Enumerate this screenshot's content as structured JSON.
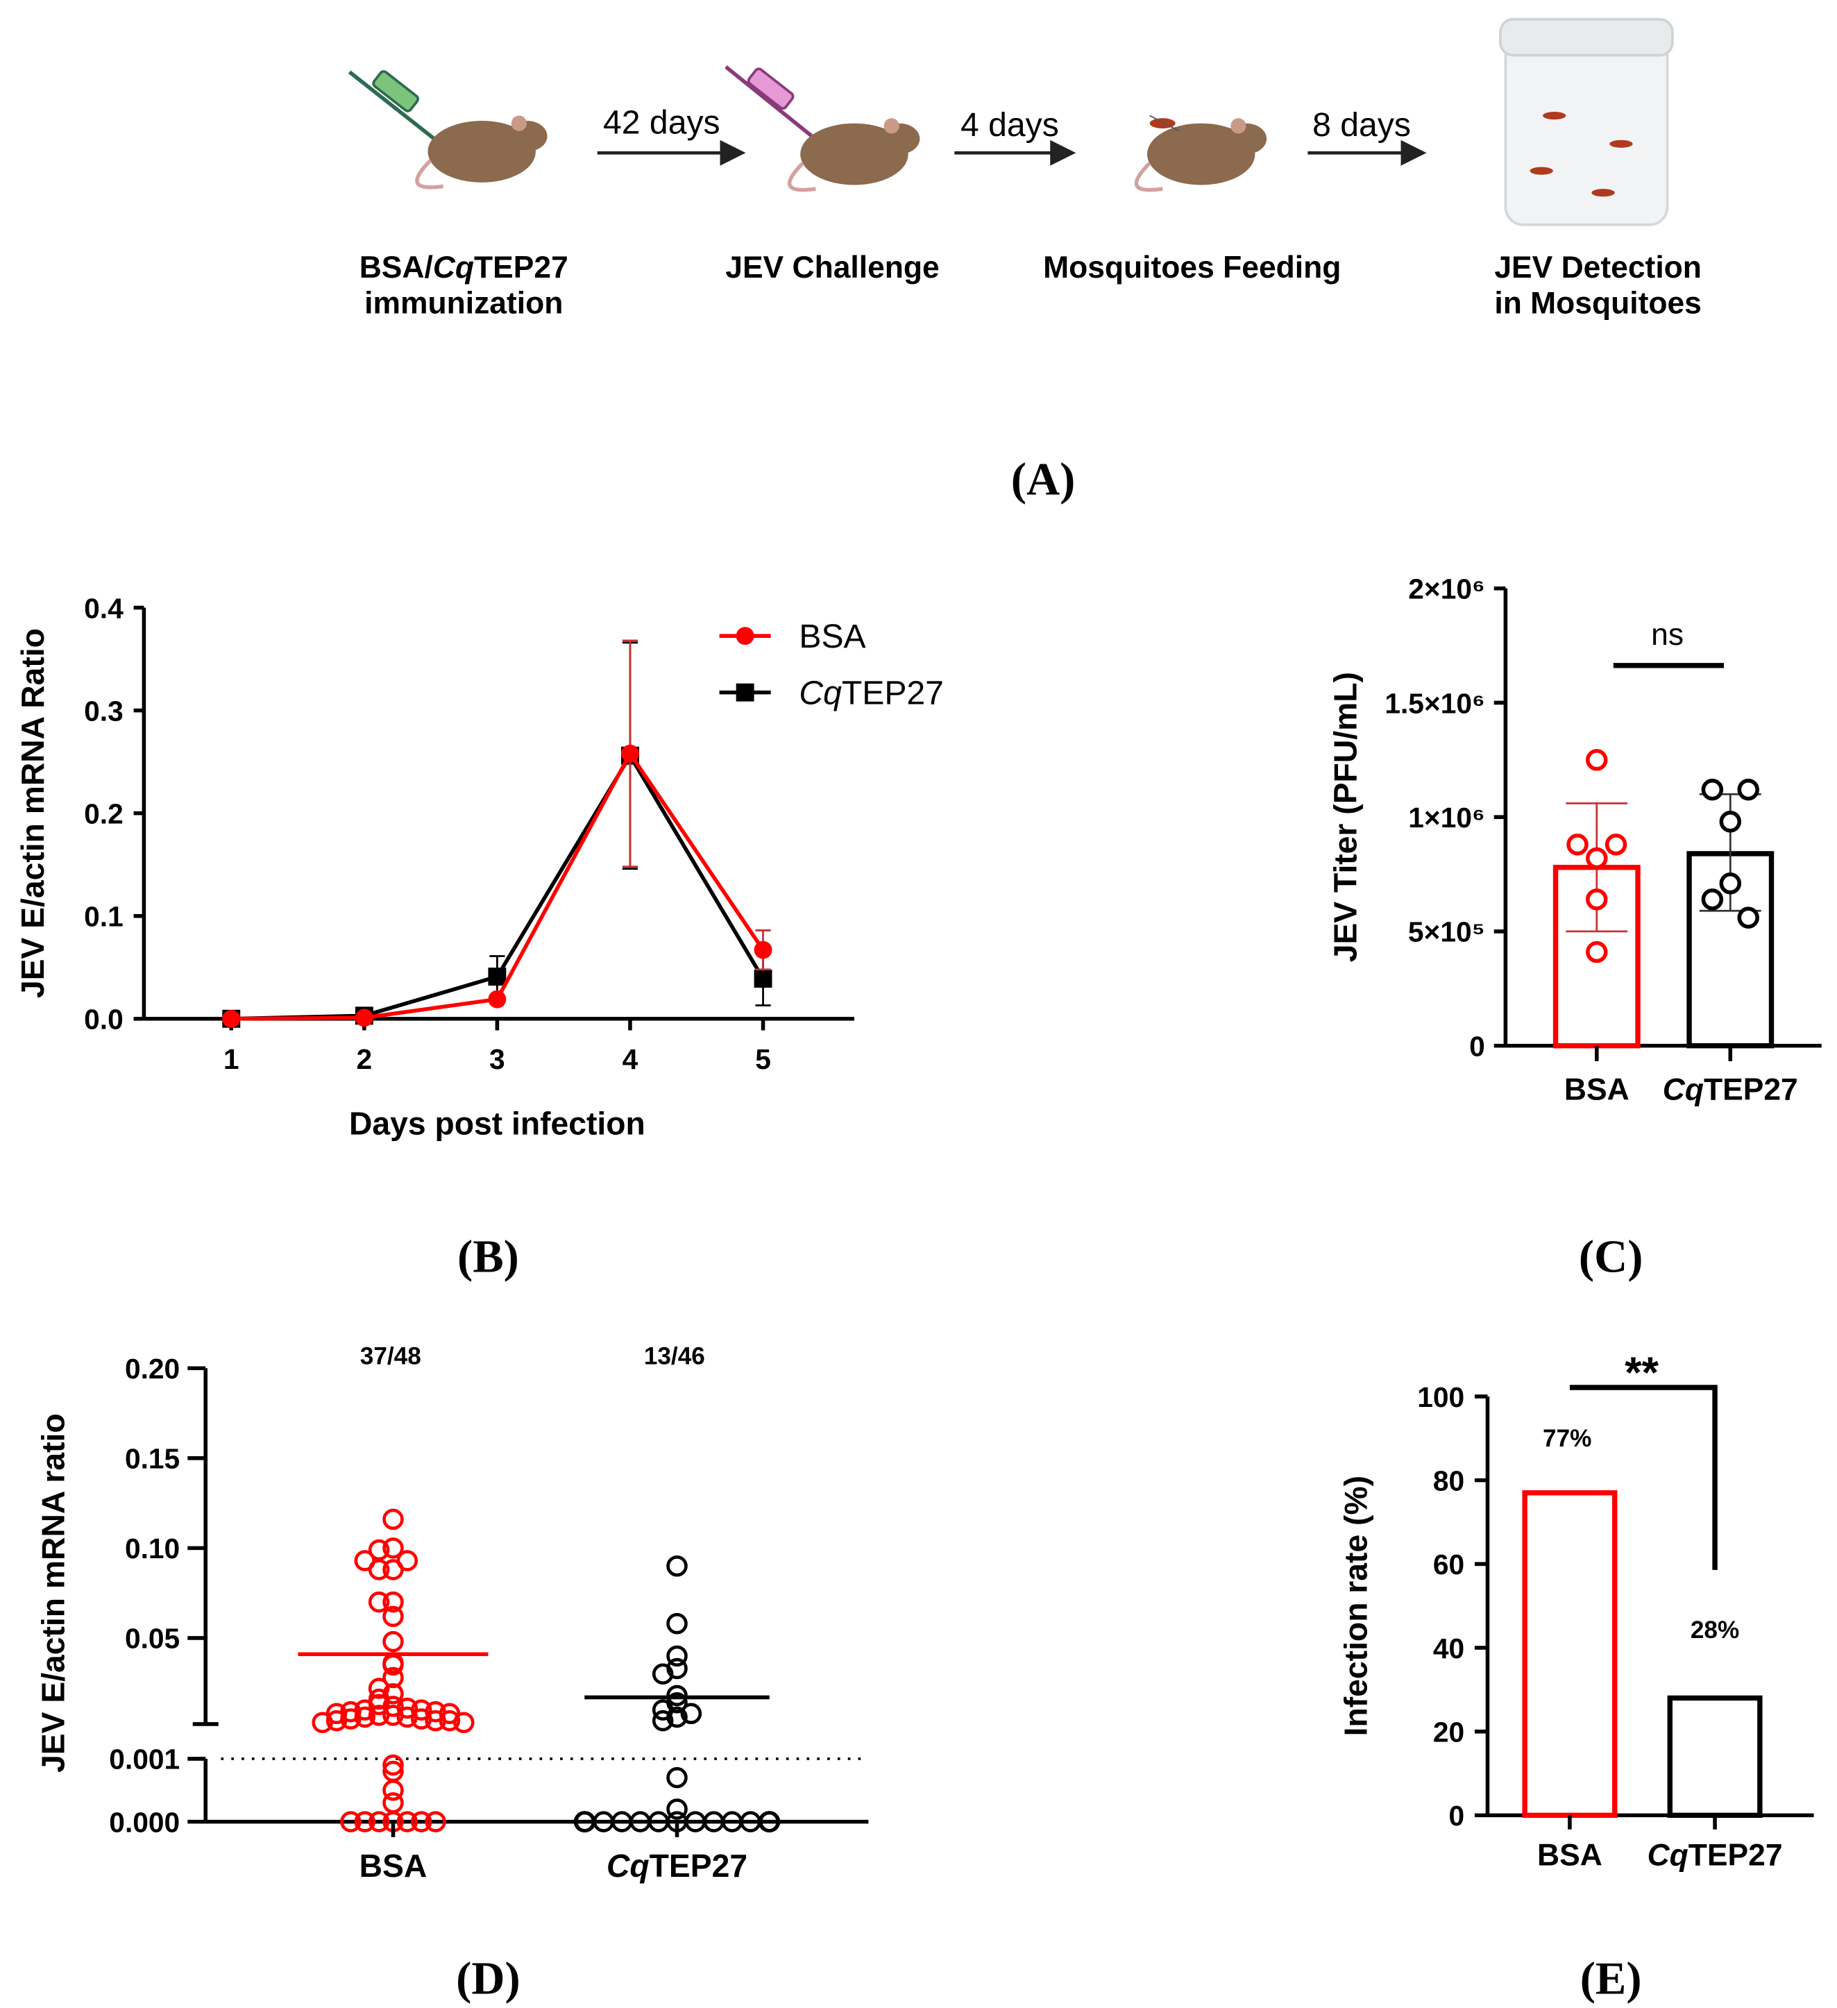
{
  "panel_labels": {
    "a": "(A)",
    "b": "(B)",
    "c": "(C)",
    "d": "(D)",
    "e": "(E)"
  },
  "workflow": {
    "arrows": [
      "42 days",
      "4 days",
      "8 days"
    ],
    "steps": [
      {
        "line1_prefix": "BSA/",
        "line1_italic": "Cq",
        "line1_suffix": "TEP27",
        "line2": "immunization"
      },
      {
        "line1": "JEV Challenge"
      },
      {
        "line1": "Mosquitoes Feeding"
      },
      {
        "line1": "JEV Detection",
        "line2": "in Mosquitoes"
      }
    ]
  },
  "colors": {
    "bsa": "#ff0000",
    "cqtep27": "#000000",
    "bsa_error": "#c83232"
  },
  "chart_data": [
    {
      "id": "B",
      "type": "line",
      "xlabel": "Days post infection",
      "ylabel": "JEV E/actin mRNA Ratio",
      "x": [
        1,
        2,
        3,
        4,
        5
      ],
      "ylim": [
        0,
        0.4
      ],
      "yticks": [
        "0.0",
        "0.1",
        "0.2",
        "0.3",
        "0.4"
      ],
      "xticks": [
        "1",
        "2",
        "3",
        "4",
        "5"
      ],
      "legend_position": "top-right",
      "series": [
        {
          "name": "BSA",
          "italic_prefix": "",
          "suffix": "BSA",
          "marker": "circle",
          "values": [
            0.0,
            0.001,
            0.019,
            0.258,
            0.067
          ],
          "errors": [
            0,
            0,
            0.003,
            0.11,
            0.019
          ]
        },
        {
          "name": "CqTEP27",
          "italic_prefix": "Cq",
          "suffix": "TEP27",
          "marker": "square",
          "values": [
            0.0,
            0.003,
            0.041,
            0.256,
            0.039
          ],
          "errors": [
            0,
            0,
            0.02,
            0.11,
            0.026
          ]
        }
      ]
    },
    {
      "id": "C",
      "type": "bar",
      "ylabel": "JEV Titer (PFU/mL)",
      "ylim": [
        0,
        2000000
      ],
      "yticks": [
        "0",
        "5×10⁵",
        "1×10⁶",
        "1.5×10⁶",
        "2×10⁶"
      ],
      "categories": [
        "BSA",
        "CqTEP27"
      ],
      "values": [
        780000,
        840000
      ],
      "error_ranges": [
        [
          500000,
          1060000
        ],
        [
          590000,
          1100000
        ]
      ],
      "points": [
        [
          1250000,
          880000,
          880000,
          820000,
          640000,
          410000
        ],
        [
          1120000,
          1120000,
          980000,
          710000,
          640000,
          560000
        ]
      ],
      "annotation": "ns"
    },
    {
      "id": "D",
      "type": "scatter",
      "ylabel": "JEV E/actin mRNA ratio",
      "yticks_upper": [
        "0.05",
        "0.10",
        "0.15",
        "0.20"
      ],
      "yticks_lower": [
        "0.000",
        "0.001"
      ],
      "ylim_upper": [
        0,
        0.2
      ],
      "ylim_lower": [
        0,
        0.001
      ],
      "threshold": 0.001,
      "categories": [
        "BSA",
        "CqTEP27"
      ],
      "counts": [
        "37/48",
        "13/46"
      ],
      "means": [
        0.041,
        0.017
      ],
      "points": [
        [
          0.116,
          0.1,
          0.099,
          0.093,
          0.093,
          0.088,
          0.088,
          0.07,
          0.07,
          0.062,
          0.048,
          0.036,
          0.035,
          0.028,
          0.022,
          0.019,
          0.016,
          0.012,
          0.013,
          0.011,
          0.01,
          0.01,
          0.009,
          0.009,
          0.008,
          0.008,
          0.007,
          0.007,
          0.006,
          0.006,
          0.005,
          0.005,
          0.004,
          0.004,
          0.004,
          0.003,
          0.003,
          0.0009,
          0.0008,
          0.0005,
          0.0003,
          0,
          0,
          0,
          0,
          0,
          0,
          0
        ],
        [
          0.09,
          0.058,
          0.04,
          0.033,
          0.03,
          0.018,
          0.014,
          0.01,
          0.008,
          0.006,
          0.004,
          0.0007,
          0.0002,
          0,
          0,
          0,
          0,
          0,
          0,
          0,
          0,
          0,
          0,
          0,
          0,
          0,
          0,
          0,
          0,
          0,
          0,
          0,
          0,
          0,
          0,
          0,
          0,
          0,
          0,
          0,
          0,
          0,
          0,
          0,
          0,
          0
        ]
      ]
    },
    {
      "id": "E",
      "type": "bar",
      "ylabel": "Infection rate (%)",
      "ylim": [
        0,
        100
      ],
      "yticks": [
        "0",
        "20",
        "40",
        "60",
        "80",
        "100"
      ],
      "categories": [
        "BSA",
        "CqTEP27"
      ],
      "values": [
        77,
        28
      ],
      "value_labels": [
        "77%",
        "28%"
      ],
      "annotation": "**"
    }
  ]
}
